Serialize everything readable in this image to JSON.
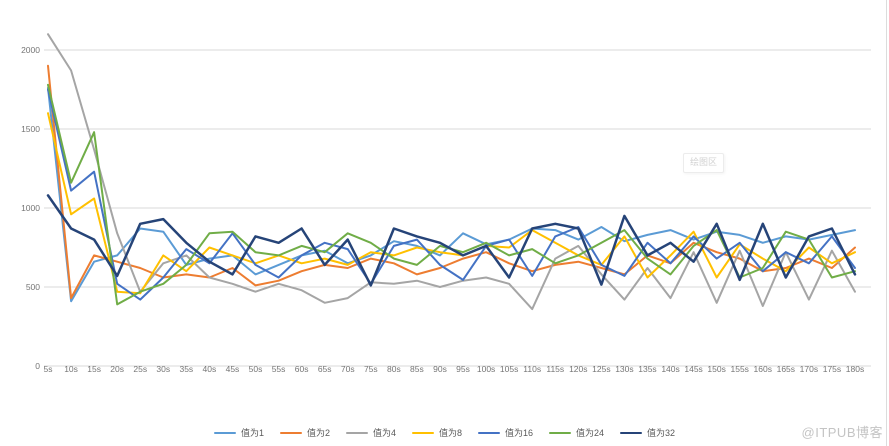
{
  "tooltip": {
    "label": "绘图区"
  },
  "watermark": {
    "text": "@ITPUB博客"
  },
  "axis_color": "#757575",
  "grid_color": "#d9d9d9",
  "chart_data": {
    "type": "line",
    "title": "",
    "xlabel": "",
    "ylabel": "",
    "ylim": [
      0,
      2250
    ],
    "yticks": [
      0,
      500,
      1000,
      1500,
      2000
    ],
    "grid": "horizontal-only",
    "legend_position": "bottom",
    "x": [
      "5s",
      "10s",
      "15s",
      "20s",
      "25s",
      "30s",
      "35s",
      "40s",
      "45s",
      "50s",
      "55s",
      "60s",
      "65s",
      "70s",
      "75s",
      "80s",
      "85s",
      "90s",
      "95s",
      "100s",
      "105s",
      "110s",
      "115s",
      "120s",
      "125s",
      "130s",
      "135s",
      "140s",
      "145s",
      "150s",
      "155s",
      "160s",
      "165s",
      "170s",
      "175s",
      "180s"
    ],
    "series": [
      {
        "name": "值为1",
        "color": "#5B9BD5",
        "width": 2,
        "values": [
          1760,
          410,
          660,
          700,
          870,
          850,
          640,
          680,
          700,
          580,
          640,
          700,
          730,
          650,
          700,
          790,
          760,
          700,
          840,
          770,
          800,
          870,
          860,
          800,
          880,
          790,
          830,
          860,
          800,
          850,
          830,
          780,
          820,
          800,
          830,
          860
        ]
      },
      {
        "name": "值为2",
        "color": "#ED7D31",
        "width": 2,
        "values": [
          1900,
          430,
          700,
          660,
          620,
          560,
          580,
          560,
          620,
          510,
          540,
          600,
          640,
          620,
          680,
          650,
          580,
          620,
          680,
          720,
          650,
          600,
          640,
          660,
          620,
          580,
          700,
          650,
          780,
          720,
          680,
          600,
          620,
          680,
          620,
          750
        ]
      },
      {
        "name": "值为4",
        "color": "#A5A5A5",
        "width": 2,
        "values": [
          2100,
          1870,
          1370,
          840,
          470,
          650,
          700,
          560,
          520,
          470,
          520,
          480,
          400,
          430,
          530,
          520,
          540,
          500,
          540,
          560,
          520,
          360,
          680,
          760,
          580,
          420,
          620,
          430,
          720,
          400,
          730,
          380,
          720,
          420,
          730,
          470
        ]
      },
      {
        "name": "值为8",
        "color": "#FFC000",
        "width": 2,
        "values": [
          1600,
          960,
          1060,
          470,
          460,
          700,
          600,
          750,
          700,
          650,
          700,
          650,
          680,
          640,
          720,
          700,
          750,
          720,
          700,
          760,
          750,
          860,
          780,
          700,
          640,
          820,
          560,
          700,
          850,
          560,
          770,
          680,
          600,
          750,
          650,
          720
        ]
      },
      {
        "name": "值为16",
        "color": "#4472C4",
        "width": 2,
        "values": [
          1750,
          1110,
          1230,
          520,
          420,
          560,
          740,
          650,
          840,
          640,
          560,
          700,
          780,
          740,
          520,
          760,
          800,
          640,
          545,
          760,
          800,
          570,
          820,
          880,
          640,
          570,
          780,
          650,
          820,
          680,
          780,
          600,
          720,
          650,
          820,
          620
        ]
      },
      {
        "name": "值为24",
        "color": "#70AD47",
        "width": 2,
        "values": [
          1780,
          1160,
          1480,
          390,
          470,
          520,
          640,
          840,
          850,
          720,
          700,
          760,
          720,
          840,
          780,
          680,
          640,
          760,
          720,
          780,
          700,
          740,
          650,
          700,
          780,
          860,
          680,
          580,
          760,
          860,
          560,
          620,
          850,
          800,
          560,
          600
        ]
      },
      {
        "name": "值为32",
        "color": "#264478",
        "width": 2.5,
        "values": [
          1080,
          870,
          800,
          570,
          900,
          930,
          780,
          660,
          580,
          820,
          780,
          870,
          640,
          800,
          510,
          870,
          820,
          780,
          700,
          760,
          560,
          870,
          900,
          870,
          515,
          950,
          700,
          780,
          660,
          900,
          545,
          900,
          560,
          820,
          870,
          580
        ]
      }
    ]
  }
}
